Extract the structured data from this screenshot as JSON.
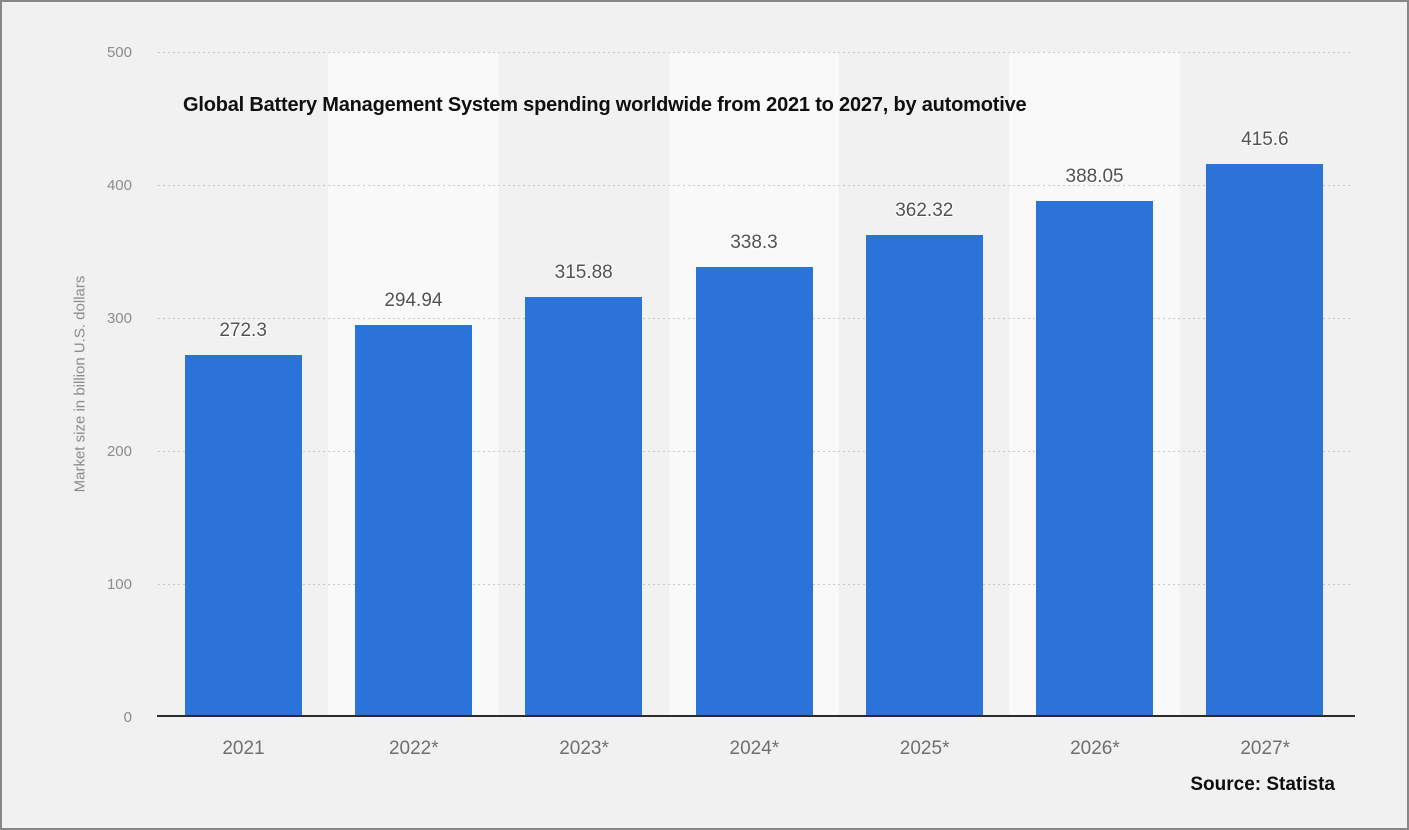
{
  "chart_data": {
    "type": "bar",
    "title": "Global Battery Management System spending worldwide from 2021 to 2027, by automotive",
    "categories": [
      "2021",
      "2022*",
      "2023*",
      "2024*",
      "2025*",
      "2026*",
      "2027*"
    ],
    "values": [
      272.3,
      294.94,
      315.88,
      338.3,
      362.32,
      388.05,
      415.6
    ],
    "xlabel": "",
    "ylabel": "Market size in billion U.S. dollars",
    "ylim": [
      0,
      500
    ],
    "yticks": [
      0,
      100,
      200,
      300,
      400,
      500
    ],
    "grid": "horizontal-dotted",
    "legend": "none",
    "bar_color": "#2b73d9",
    "plot_band_alternate_color": "#f9f9f9",
    "source": "Source: Statista"
  }
}
